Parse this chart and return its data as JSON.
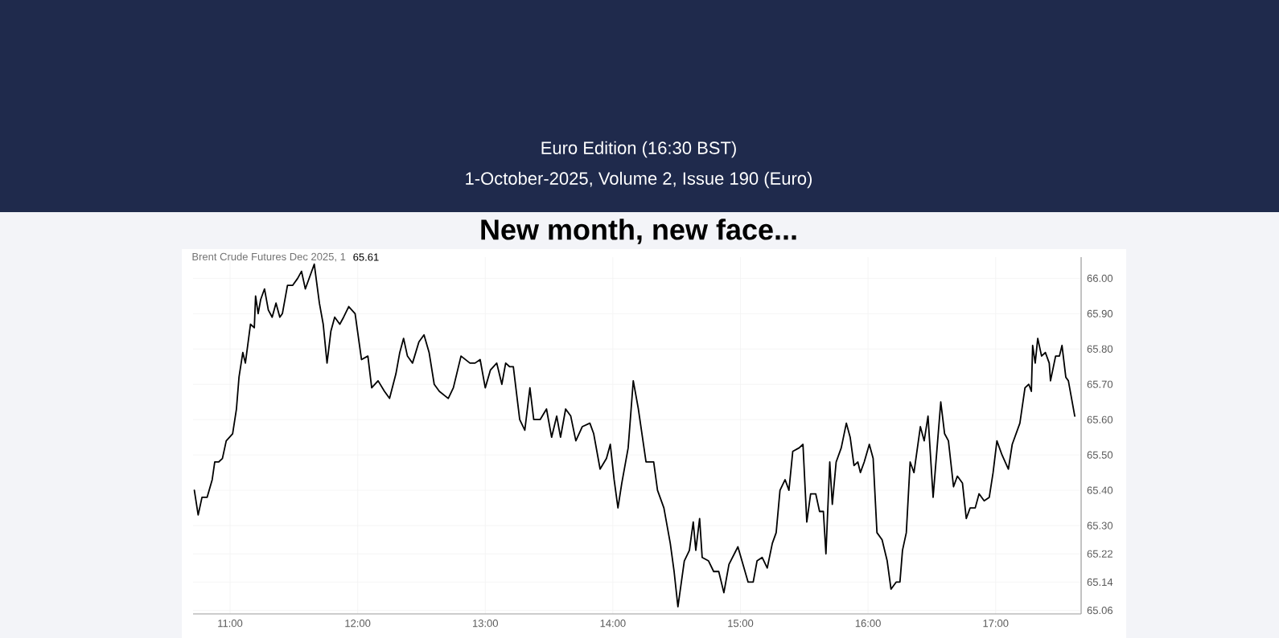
{
  "chart_data": {
    "type": "line",
    "title": "New month, new face...",
    "subtitle": "Euro Edition (16:30 BST)",
    "annotations": [
      "1-October-2025, Volume 2, Issue 190 (Euro)",
      "Brent Crude Futures Dec 2025, 1",
      "65.61"
    ],
    "x": [
      10.72,
      10.75,
      10.78,
      10.82,
      10.86,
      10.88,
      10.91,
      10.94,
      10.97,
      11.02,
      11.05,
      11.07,
      11.1,
      11.12,
      11.16,
      11.19,
      11.2,
      11.22,
      11.24,
      11.27,
      11.3,
      11.33,
      11.36,
      11.39,
      11.41,
      11.45,
      11.49,
      11.53,
      11.56,
      11.59,
      11.66,
      11.7,
      11.73,
      11.76,
      11.79,
      11.82,
      11.86,
      11.89,
      11.93,
      11.98,
      12.03,
      12.08,
      12.11,
      12.16,
      12.21,
      12.25,
      12.3,
      12.33,
      12.36,
      12.39,
      12.43,
      12.48,
      12.52,
      12.56,
      12.6,
      12.64,
      12.71,
      12.75,
      12.81,
      12.88,
      12.92,
      12.96,
      13.0,
      13.04,
      13.09,
      13.13,
      13.16,
      13.19,
      13.22,
      13.27,
      13.31,
      13.35,
      13.38,
      13.43,
      13.48,
      13.52,
      13.56,
      13.59,
      13.63,
      13.67,
      13.71,
      13.76,
      13.82,
      13.85,
      13.9,
      13.95,
      13.98,
      14.01,
      14.04,
      14.07,
      14.12,
      14.16,
      14.2,
      14.26,
      14.32,
      14.35,
      14.4,
      14.45,
      14.48,
      14.51,
      14.56,
      14.6,
      14.63,
      14.65,
      14.68,
      14.7,
      14.75,
      14.79,
      14.83,
      14.87,
      14.91,
      14.98,
      15.02,
      15.06,
      15.1,
      15.13,
      15.17,
      15.21,
      15.25,
      15.28,
      15.31,
      15.35,
      15.38,
      15.41,
      15.46,
      15.49,
      15.52,
      15.55,
      15.59,
      15.62,
      15.65,
      15.67,
      15.7,
      15.72,
      15.75,
      15.79,
      15.83,
      15.86,
      15.89,
      15.92,
      15.94,
      15.97,
      16.01,
      16.04,
      16.07,
      16.11,
      16.15,
      16.18,
      16.22,
      16.25,
      16.27,
      16.3,
      16.33,
      16.36,
      16.41,
      16.44,
      16.47,
      16.51,
      16.57,
      16.6,
      16.63,
      16.67,
      16.7,
      16.74,
      16.77,
      16.8,
      16.84,
      16.87,
      16.91,
      16.95,
      16.98,
      17.01,
      17.05,
      17.1,
      17.13,
      17.19,
      17.23,
      17.26,
      17.28,
      17.29,
      17.31,
      17.33,
      17.36,
      17.39,
      17.42,
      17.43,
      17.47,
      17.5,
      17.52,
      17.55,
      17.57,
      17.62
    ],
    "series": [
      {
        "color": "#000000",
        "values": [
          65.4,
          65.33,
          65.38,
          65.38,
          65.43,
          65.48,
          65.48,
          65.49,
          65.54,
          65.56,
          65.63,
          65.72,
          65.79,
          65.76,
          65.87,
          65.86,
          65.95,
          65.9,
          65.94,
          65.97,
          65.91,
          65.89,
          65.93,
          65.89,
          65.9,
          65.98,
          65.98,
          66.0,
          66.02,
          65.97,
          66.04,
          65.93,
          65.87,
          65.76,
          65.85,
          65.89,
          65.87,
          65.89,
          65.92,
          65.9,
          65.77,
          65.78,
          65.69,
          65.71,
          65.68,
          65.66,
          65.73,
          65.79,
          65.83,
          65.78,
          65.76,
          65.82,
          65.84,
          65.79,
          65.7,
          65.68,
          65.66,
          65.69,
          65.78,
          65.76,
          65.76,
          65.77,
          65.69,
          65.74,
          65.76,
          65.7,
          65.76,
          65.75,
          65.75,
          65.6,
          65.57,
          65.69,
          65.6,
          65.6,
          65.63,
          65.55,
          65.61,
          65.55,
          65.63,
          65.61,
          65.54,
          65.58,
          65.59,
          65.56,
          65.46,
          65.49,
          65.53,
          65.43,
          65.35,
          65.42,
          65.52,
          65.71,
          65.63,
          65.48,
          65.48,
          65.4,
          65.35,
          65.25,
          65.17,
          65.07,
          65.2,
          65.23,
          65.31,
          65.23,
          65.32,
          65.21,
          65.2,
          65.17,
          65.17,
          65.11,
          65.19,
          65.24,
          65.19,
          65.14,
          65.14,
          65.2,
          65.21,
          65.18,
          65.25,
          65.28,
          65.4,
          65.43,
          65.4,
          65.51,
          65.52,
          65.53,
          65.31,
          65.39,
          65.39,
          65.34,
          65.34,
          65.22,
          65.48,
          65.36,
          65.48,
          65.52,
          65.59,
          65.55,
          65.47,
          65.48,
          65.45,
          65.48,
          65.53,
          65.49,
          65.28,
          65.26,
          65.2,
          65.12,
          65.14,
          65.14,
          65.23,
          65.28,
          65.48,
          65.45,
          65.58,
          65.54,
          65.61,
          65.38,
          65.65,
          65.56,
          65.54,
          65.41,
          65.44,
          65.42,
          65.32,
          65.35,
          65.35,
          65.39,
          65.37,
          65.38,
          65.45,
          65.54,
          65.5,
          65.46,
          65.53,
          65.59,
          65.69,
          65.7,
          65.68,
          65.81,
          65.76,
          65.83,
          65.78,
          65.79,
          65.76,
          65.71,
          65.78,
          65.78,
          65.81,
          65.72,
          65.71,
          65.61
        ]
      }
    ],
    "xlim": [
      10.71,
      17.67
    ],
    "ylim": [
      65.05,
      66.06
    ],
    "xticks": [
      {
        "value": 11,
        "label": "11:00"
      },
      {
        "value": 12,
        "label": "12:00"
      },
      {
        "value": 13,
        "label": "13:00"
      },
      {
        "value": 14,
        "label": "14:00"
      },
      {
        "value": 15,
        "label": "15:00"
      },
      {
        "value": 16,
        "label": "16:00"
      },
      {
        "value": 17,
        "label": "17:00"
      }
    ],
    "yticks": [
      {
        "value": 65.06,
        "label": "65.06"
      },
      {
        "value": 65.14,
        "label": "65.14"
      },
      {
        "value": 65.22,
        "label": "65.22"
      },
      {
        "value": 65.3,
        "label": "65.30"
      },
      {
        "value": 65.4,
        "label": "65.40"
      },
      {
        "value": 65.5,
        "label": "65.50"
      },
      {
        "value": 65.6,
        "label": "65.60"
      },
      {
        "value": 65.7,
        "label": "65.70"
      },
      {
        "value": 65.8,
        "label": "65.80"
      },
      {
        "value": 65.9,
        "label": "65.90"
      },
      {
        "value": 66,
        "label": "66.00"
      }
    ],
    "grid": true
  }
}
